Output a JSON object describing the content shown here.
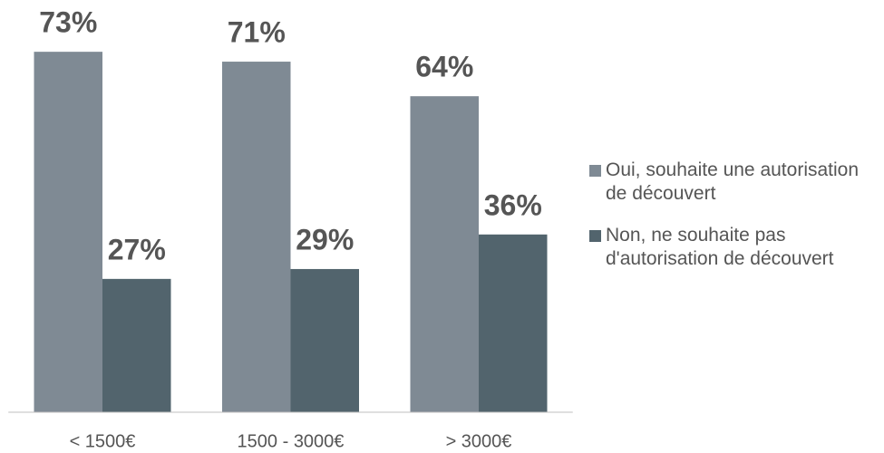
{
  "chart_data": {
    "type": "bar",
    "categories": [
      "< 1500€",
      "1500 - 3000€",
      "> 3000€"
    ],
    "series": [
      {
        "name": "Oui, souhaite une autorisation de découvert",
        "color": "#7f8a94",
        "values": [
          73,
          71,
          64
        ],
        "value_labels": [
          "73%",
          "71%",
          "64%"
        ]
      },
      {
        "name": "Non, ne souhaite pas d'autorisation de découvert",
        "color": "#52646d",
        "values": [
          27,
          29,
          36
        ],
        "value_labels": [
          "27%",
          "29%",
          "36%"
        ]
      }
    ],
    "ylim": [
      0,
      80
    ],
    "legend": "right"
  }
}
